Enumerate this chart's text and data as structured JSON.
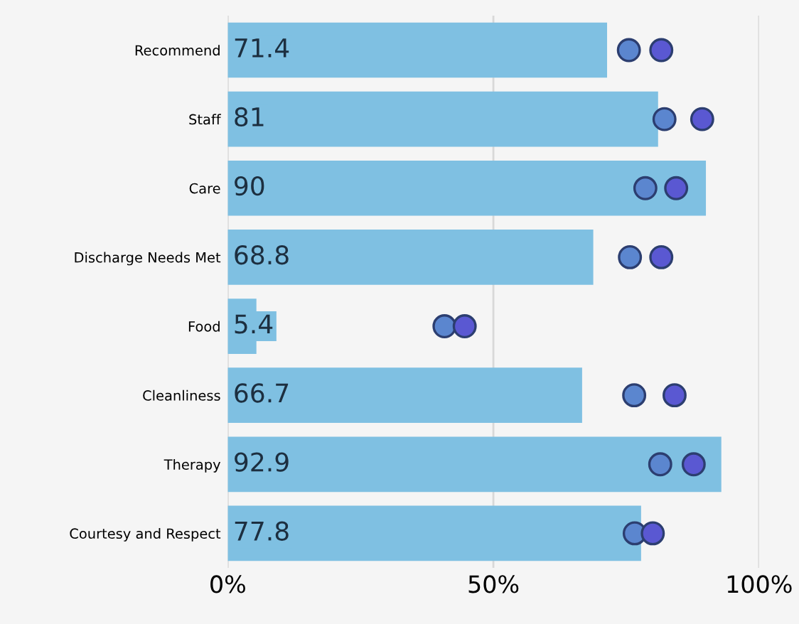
{
  "chart_data": {
    "type": "bar",
    "orientation": "horizontal",
    "categories": [
      "Recommend",
      "Staff",
      "Care",
      "Discharge Needs Met",
      "Food",
      "Cleanliness",
      "Therapy",
      "Courtesy and Respect"
    ],
    "series": [
      {
        "color": "#7fc0e2",
        "values": [
          71.4,
          81,
          90,
          68.8,
          5.4,
          66.7,
          92.9,
          77.8
        ],
        "value_labels": [
          "71.4",
          "81",
          "90",
          "68.8",
          "5.4",
          "66.7",
          "92.9",
          "77.8"
        ]
      },
      {
        "type": "scatter",
        "color": "#5b86cf",
        "values": [
          75.5,
          82.2,
          78.6,
          75.7,
          40.8,
          76.5,
          81.4,
          76.6
        ]
      },
      {
        "type": "scatter",
        "color": "#5a58d2",
        "values": [
          81.6,
          89.3,
          84.4,
          81.6,
          44.6,
          84.1,
          87.7,
          80.0
        ]
      }
    ],
    "xlim": [
      0,
      100
    ],
    "xticks": [
      {
        "value": 0,
        "label": "0%"
      },
      {
        "value": 50,
        "label": "50%"
      },
      {
        "value": 100,
        "label": "100%"
      }
    ],
    "grid": "x",
    "marker": "circle",
    "legend": false
  }
}
